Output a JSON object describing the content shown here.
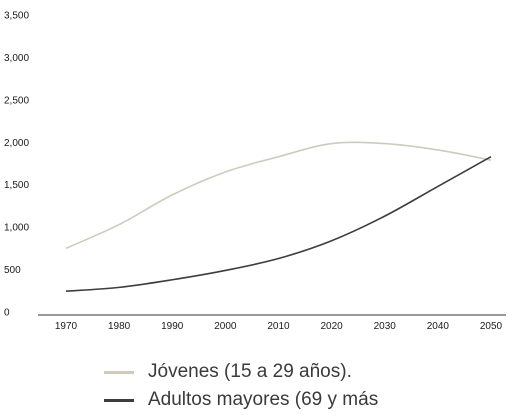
{
  "chart_data": {
    "type": "line",
    "x": [
      1970,
      1980,
      1990,
      2000,
      2010,
      2020,
      2030,
      2040,
      2050
    ],
    "xticks": [
      "1970",
      "1980",
      "1990",
      "2000",
      "2010",
      "2020",
      "2030",
      "2040",
      "2050"
    ],
    "yticks": [
      "0",
      "500",
      "1,000",
      "1,500",
      "2,000",
      "2,500",
      "3,000",
      "3,500"
    ],
    "ylim": [
      0,
      3500
    ],
    "grid": false,
    "legend_position": "bottom",
    "series": [
      {
        "name": "Jóvenes (15 a 29 años).",
        "color": "#cfcabb",
        "values": [
          750,
          1030,
          1380,
          1650,
          1830,
          1985,
          1985,
          1910,
          1790
        ]
      },
      {
        "name": "Adultos mayores (69 y más",
        "color": "#3d3d3d",
        "values": [
          245,
          290,
          380,
          490,
          630,
          840,
          1130,
          1480,
          1830
        ]
      }
    ]
  }
}
